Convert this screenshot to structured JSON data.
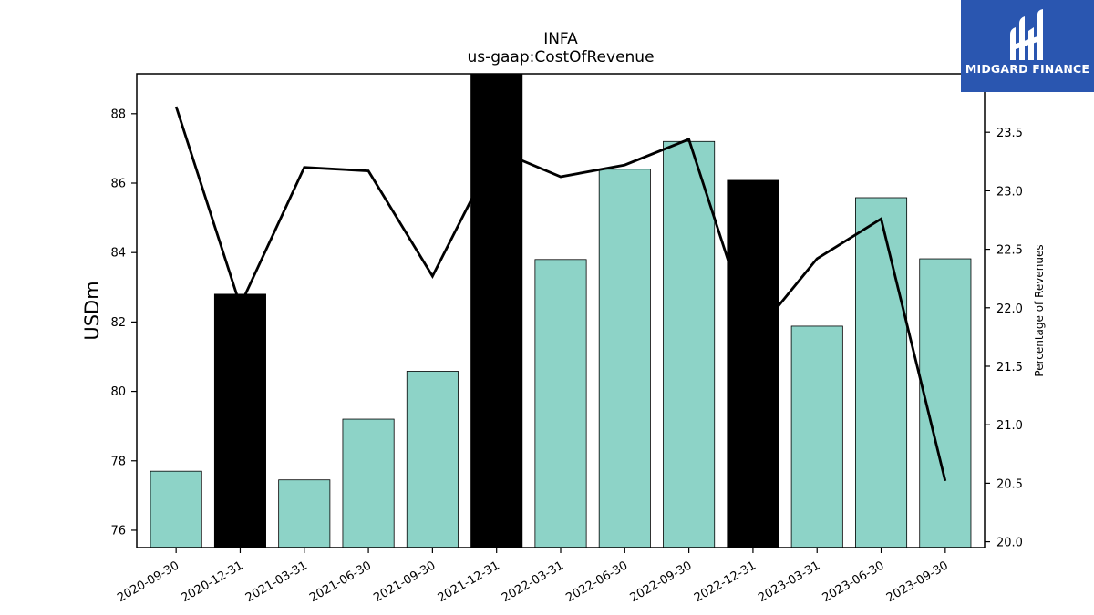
{
  "logo": {
    "brand_name": "MIDGARD FINANCE",
    "icon": "midgard-mark-icon",
    "background": "#2a56b0"
  },
  "chart_data": {
    "type": "bar",
    "title": "INFA",
    "subtitle": "us-gaap:CostOfRevenue",
    "ylabel": "USDm",
    "y2label": "Percentage of Revenues",
    "categories": [
      "2020-09-30",
      "2020-12-31",
      "2021-03-31",
      "2021-06-30",
      "2021-09-30",
      "2021-12-31",
      "2022-03-31",
      "2022-06-30",
      "2022-09-30",
      "2022-12-31",
      "2023-03-31",
      "2023-06-30",
      "2023-09-30"
    ],
    "series": [
      {
        "kind": "bar",
        "axis": "left",
        "values": [
          77.7,
          82.8,
          77.45,
          79.2,
          80.58,
          89.15,
          83.8,
          86.4,
          87.2,
          86.08,
          81.88,
          85.58,
          83.82
        ],
        "colors": [
          "#8dd3c7",
          "#000000",
          "#8dd3c7",
          "#8dd3c7",
          "#8dd3c7",
          "#000000",
          "#8dd3c7",
          "#8dd3c7",
          "#8dd3c7",
          "#000000",
          "#8dd3c7",
          "#8dd3c7",
          "#8dd3c7"
        ]
      },
      {
        "kind": "line",
        "axis": "right",
        "color": "#000000",
        "values": [
          23.72,
          22.02,
          23.2,
          23.17,
          22.27,
          23.35,
          23.12,
          23.22,
          23.44,
          21.75,
          22.42,
          22.76,
          20.52
        ]
      }
    ],
    "ylim": [
      75.5,
      89.15
    ],
    "y2lim": [
      19.95,
      24.0
    ],
    "yticks": [
      76,
      78,
      80,
      82,
      84,
      86,
      88
    ],
    "y2ticks": [
      "20.0",
      "20.5",
      "21.0",
      "21.5",
      "22.0",
      "22.5",
      "23.0",
      "23.5"
    ],
    "grid": false,
    "legend": "none",
    "colors": {
      "normal_bar": "#8dd3c7",
      "q4_bar": "#000000",
      "line": "#000000"
    }
  }
}
